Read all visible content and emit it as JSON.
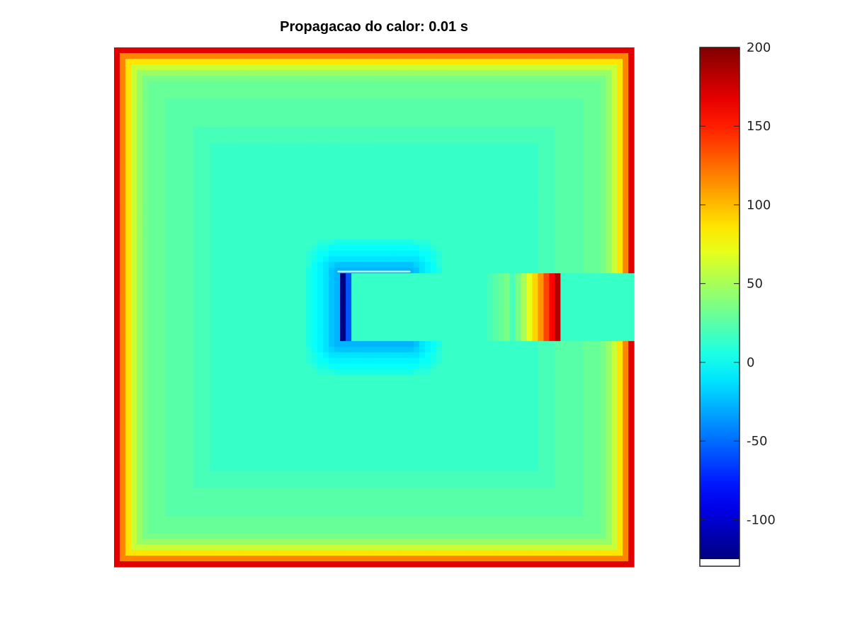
{
  "chart_data": {
    "type": "heatmap",
    "title": "Propagacao do calor: 0.01 s",
    "xlabel": "",
    "ylabel": "",
    "colormap": "jet",
    "colorbar": {
      "range": [
        -125,
        200
      ],
      "ticks": [
        200,
        150,
        100,
        50,
        0,
        -50,
        -100
      ],
      "tick_labels": [
        "200",
        "150",
        "100",
        "50",
        "0",
        "-50",
        "-100"
      ],
      "placement": "right"
    },
    "field": {
      "grid_size": [
        1,
        1
      ],
      "boundary_value": 200,
      "interior_value": 15,
      "ring_value": 30,
      "hole": {
        "description": "square hole with cold edge",
        "x": [
          0.43,
          0.57
        ],
        "y": [
          0.43,
          0.57
        ],
        "edge_value": -125
      },
      "bar": {
        "x": [
          0.43,
          1.0
        ],
        "y": [
          0.43,
          0.57
        ],
        "base_value": 15,
        "hot_band_x": [
          0.76,
          0.86
        ],
        "hot_band_peak": 200
      }
    },
    "grid": false,
    "legend": "none"
  }
}
